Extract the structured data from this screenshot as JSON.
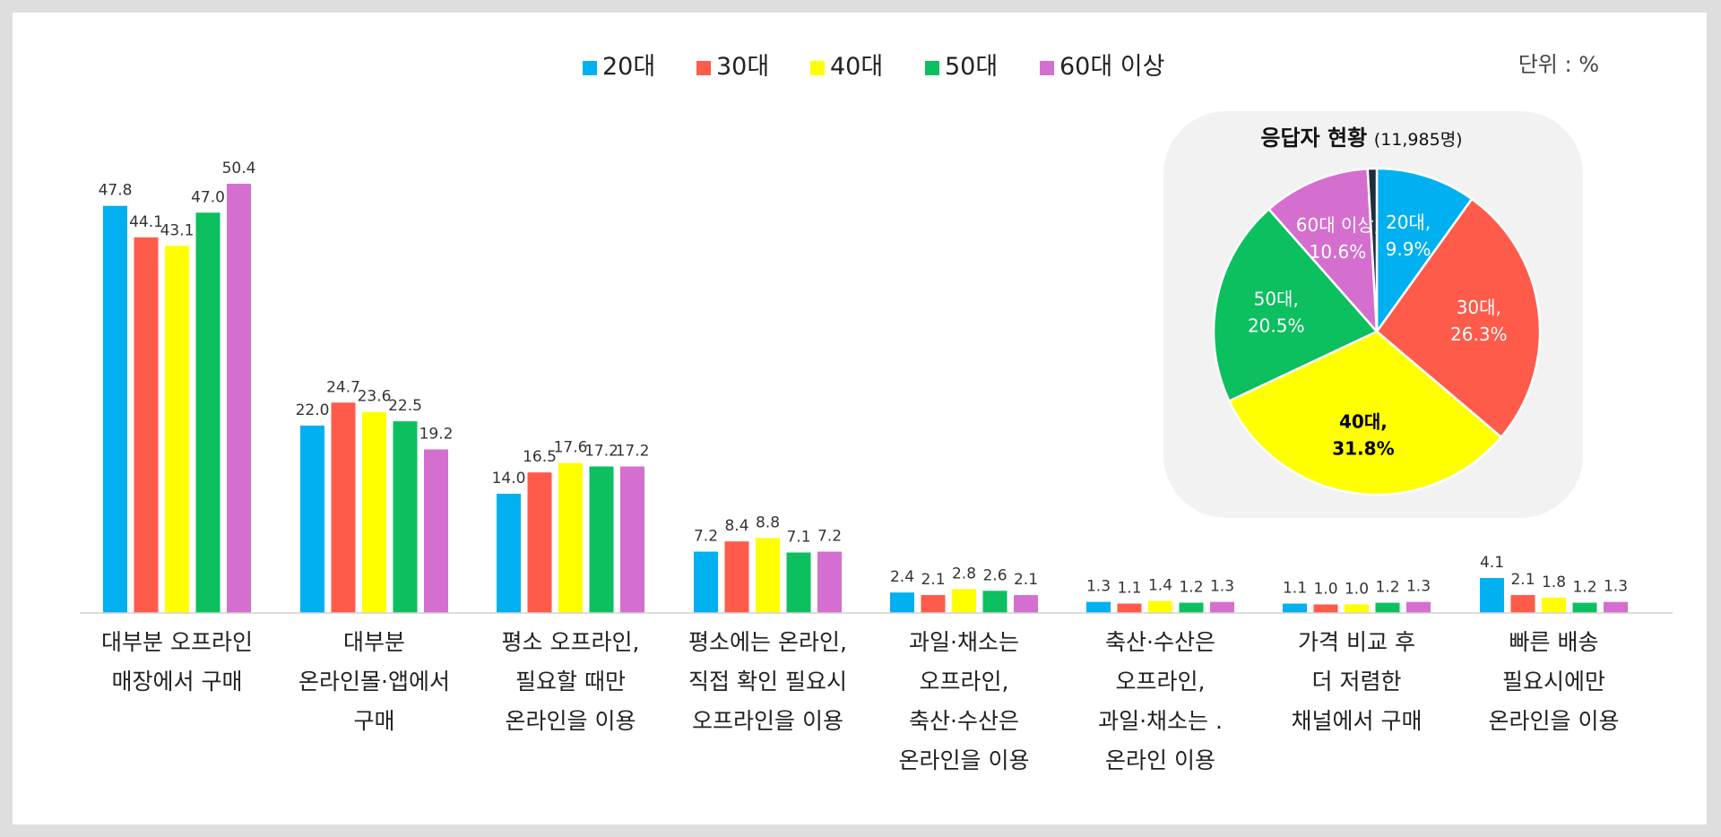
{
  "unit_label": "단위 : %",
  "chart_data": [
    {
      "type": "bar",
      "title": "",
      "xlabel": "",
      "ylabel": "",
      "ylim": [
        0,
        50.4
      ],
      "grid": false,
      "legend": "top-center",
      "categories": [
        [
          "대부분 오프라인",
          "매장에서 구매"
        ],
        [
          "대부분",
          "온라인몰·앱에서",
          "구매"
        ],
        [
          "평소 오프라인,",
          "필요할 때만",
          "온라인을 이용"
        ],
        [
          "평소에는 온라인,",
          "직접 확인 필요시",
          "오프라인을 이용"
        ],
        [
          "과일·채소는",
          "오프라인,",
          "축산·수산은",
          "온라인을 이용"
        ],
        [
          "축산·수산은",
          "오프라인,",
          "과일·채소는 .",
          "온라인 이용"
        ],
        [
          "가격 비교 후",
          "더 저렴한",
          "채널에서 구매"
        ],
        [
          "빠른 배송",
          "필요시에만",
          "온라인을 이용"
        ]
      ],
      "series": [
        {
          "name": "20대",
          "color": "#00b0f0",
          "values": [
            47.8,
            22.0,
            14.0,
            7.2,
            2.4,
            1.3,
            1.1,
            4.1
          ]
        },
        {
          "name": "30대",
          "color": "#ff5b4a",
          "values": [
            44.1,
            24.7,
            16.5,
            8.4,
            2.1,
            1.1,
            1.0,
            2.1
          ]
        },
        {
          "name": "40대",
          "color": "#ffff00",
          "values": [
            43.1,
            23.6,
            17.6,
            8.8,
            2.8,
            1.4,
            1.0,
            1.8
          ]
        },
        {
          "name": "50대",
          "color": "#0cbf5f",
          "values": [
            47.0,
            22.5,
            17.2,
            7.1,
            2.6,
            1.2,
            1.2,
            1.2
          ]
        },
        {
          "name": "60대 이상",
          "color": "#d46fcf",
          "values": [
            50.4,
            19.2,
            17.2,
            7.2,
            2.1,
            1.3,
            1.3,
            1.3
          ]
        }
      ],
      "value_labels": [
        [
          "47.8",
          "22.0",
          "14.0",
          "7.2",
          "2.4",
          "1.3",
          "1.1",
          "4.1"
        ],
        [
          "44.1",
          "24.7",
          "16.5",
          "8.4",
          "2.1",
          "1.1",
          "1.0",
          "2.1"
        ],
        [
          "43.1",
          "23.6",
          "17.6",
          "8.8",
          "2.8",
          "1.4",
          "1.0",
          "1.8"
        ],
        [
          "47.0",
          "22.5",
          "17.2",
          "7.1",
          "2.6",
          "1.2",
          "1.2",
          "1.2"
        ],
        [
          "50.4",
          "19.2",
          "17.2",
          "7.2",
          "2.1",
          "1.3",
          "1.3",
          "1.3"
        ]
      ]
    },
    {
      "type": "pie",
      "title": "응답자 현황",
      "subtitle": "(11,985명)",
      "slices": [
        {
          "name": "20대",
          "label": "20대,",
          "pct_label": "9.9%",
          "value": 9.9,
          "color": "#00b0f0",
          "text_color": "#ffffff"
        },
        {
          "name": "30대",
          "label": "30대,",
          "pct_label": "26.3%",
          "value": 26.3,
          "color": "#ff5b4a",
          "text_color": "#ffffff"
        },
        {
          "name": "40대",
          "label": "40대,",
          "pct_label": "31.8%",
          "value": 31.8,
          "color": "#ffff00",
          "text_color": "#000000"
        },
        {
          "name": "50대",
          "label": "50대,",
          "pct_label": "20.5%",
          "value": 20.5,
          "color": "#0cbf5f",
          "text_color": "#ffffff"
        },
        {
          "name": "60대 이상",
          "label": "60대 이상,",
          "pct_label": "10.6%",
          "value": 10.6,
          "color": "#d46fcf",
          "text_color": "#ffffff"
        },
        {
          "name": "",
          "label": "",
          "pct_label": "",
          "value": 0.9,
          "color": "#1f2d3d",
          "text_color": "#ffffff"
        }
      ]
    }
  ]
}
